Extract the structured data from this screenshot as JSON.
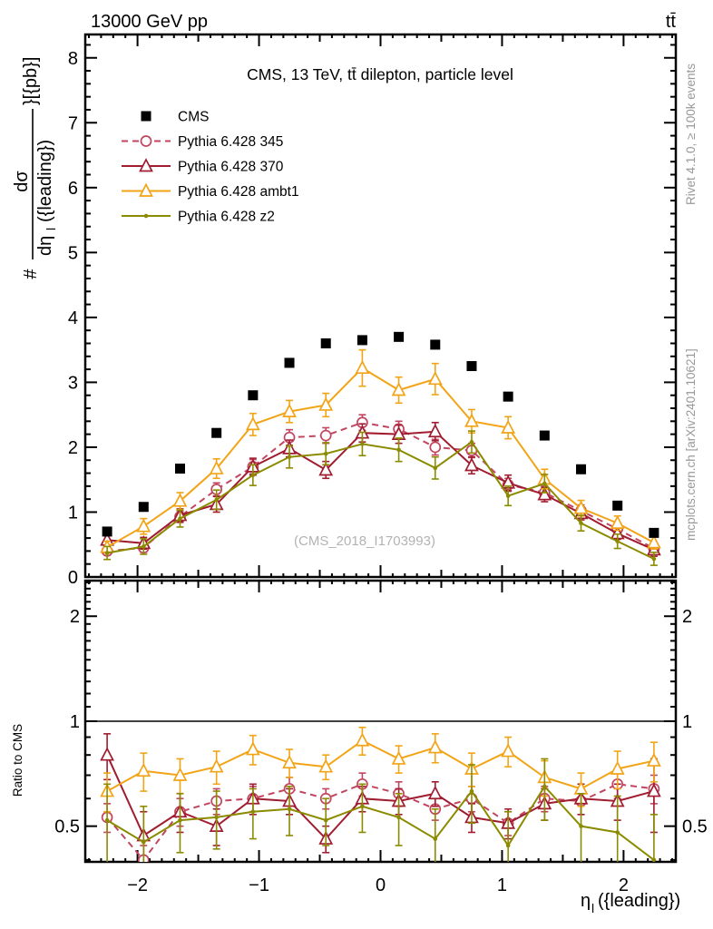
{
  "header": {
    "left": "13000 GeV pp",
    "right": "tt̄"
  },
  "right_margin": {
    "top": "Rivet 4.1.0, ≥ 100k events",
    "bottom": "mcplots.cern.ch [arXiv:2401.10621]"
  },
  "ylabel_pieces": {
    "prefix": "#",
    "num": "dσ",
    "den1": "dη",
    "den_sub": "l",
    "den2": "({leading})",
    "suffix": "}[{pb}]"
  },
  "xlabel_pieces": {
    "main": "η",
    "sub": "l",
    "rest": "({leading})"
  },
  "colors": {
    "cms": "#000000",
    "p345": "#c2455f",
    "p370": "#a01c30",
    "ambt1": "#f2a416",
    "z2": "#8b8b00",
    "frame": "#000000",
    "gray_text": "#999999",
    "watermark": "#b3b3b3"
  },
  "legend": {
    "items": [
      {
        "id": "cms",
        "label": "CMS"
      },
      {
        "id": "p345",
        "label": "Pythia 6.428 345"
      },
      {
        "id": "p370",
        "label": "Pythia 6.428 370"
      },
      {
        "id": "ambt1",
        "label": "Pythia 6.428 ambt1"
      },
      {
        "id": "z2",
        "label": "Pythia 6.428 z2"
      }
    ]
  },
  "chart_data": [
    {
      "type": "scatter",
      "title": "CMS, 13 TeV, tt̄ dilepton, particle level",
      "annotation": "(CMS_2018_I1703993)",
      "xlabel": "eta_l({leading})",
      "ylabel": "# dsigma/deta_l({leading}) [pb]",
      "xlim": [
        -2.43,
        2.43
      ],
      "ylim": [
        0,
        8.36
      ],
      "yticks": [
        0,
        1,
        2,
        3,
        4,
        5,
        6,
        7,
        8
      ],
      "xticks": [
        -2,
        -1,
        0,
        1,
        2
      ],
      "xtick_labels": [
        "−2",
        "−1",
        "0",
        "1",
        "2"
      ],
      "grid": false,
      "legend_position": "top-left",
      "x": [
        -2.25,
        -1.95,
        -1.65,
        -1.35,
        -1.05,
        -0.75,
        -0.45,
        -0.15,
        0.15,
        0.45,
        0.75,
        1.05,
        1.35,
        1.65,
        1.95,
        2.25
      ],
      "series": [
        {
          "id": "cms",
          "name": "CMS",
          "marker": "square",
          "line": "none",
          "values": [
            0.7,
            1.08,
            1.67,
            2.22,
            2.8,
            3.3,
            3.6,
            3.65,
            3.7,
            3.58,
            3.25,
            2.78,
            2.18,
            1.66,
            1.1,
            0.68
          ]
        },
        {
          "id": "p345",
          "name": "Pythia 6.428 345",
          "marker": "circle",
          "line": "dashed",
          "values": [
            0.4,
            0.45,
            0.93,
            1.35,
            1.7,
            2.15,
            2.18,
            2.38,
            2.28,
            2.0,
            1.95,
            1.42,
            1.3,
            1.02,
            0.74,
            0.44
          ],
          "errors": [
            0.06,
            0.07,
            0.09,
            0.1,
            0.11,
            0.12,
            0.12,
            0.12,
            0.12,
            0.12,
            0.11,
            0.1,
            0.1,
            0.09,
            0.08,
            0.06
          ]
        },
        {
          "id": "p370",
          "name": "Pythia 6.428 370",
          "marker": "triangle",
          "line": "solid",
          "values": [
            0.57,
            0.52,
            0.95,
            1.12,
            1.7,
            1.98,
            1.65,
            2.22,
            2.2,
            2.24,
            1.72,
            1.45,
            1.27,
            0.98,
            0.67,
            0.42
          ],
          "errors": [
            0.1,
            0.09,
            0.1,
            0.12,
            0.13,
            0.13,
            0.13,
            0.14,
            0.14,
            0.14,
            0.13,
            0.12,
            0.11,
            0.1,
            0.09,
            0.1
          ]
        },
        {
          "id": "ambt1",
          "name": "Pythia 6.428 ambt1",
          "marker": "triangle",
          "line": "solid",
          "values": [
            0.46,
            0.78,
            1.17,
            1.67,
            2.35,
            2.55,
            2.65,
            3.22,
            2.88,
            3.05,
            2.4,
            2.3,
            1.51,
            1.06,
            0.83,
            0.53
          ],
          "errors": [
            0.09,
            0.12,
            0.13,
            0.15,
            0.17,
            0.17,
            0.18,
            0.28,
            0.2,
            0.24,
            0.18,
            0.17,
            0.15,
            0.12,
            0.11,
            0.1
          ]
        },
        {
          "id": "z2",
          "name": "Pythia 6.428 z2",
          "marker": "dot",
          "line": "solid",
          "values": [
            0.37,
            0.47,
            0.9,
            1.19,
            1.57,
            1.85,
            1.9,
            2.05,
            1.96,
            1.68,
            2.08,
            1.25,
            1.44,
            0.83,
            0.55,
            0.28
          ],
          "errors": [
            0.1,
            0.12,
            0.13,
            0.15,
            0.16,
            0.17,
            0.17,
            0.18,
            0.18,
            0.17,
            0.17,
            0.15,
            0.14,
            0.12,
            0.11,
            0.1
          ]
        }
      ]
    },
    {
      "type": "line",
      "ylabel": "Ratio to CMS",
      "yscale": "log",
      "xlim": [
        -2.43,
        2.43
      ],
      "ylim": [
        0.395,
        2.53
      ],
      "yticks": [
        0.5,
        1,
        2
      ],
      "ytick_labels": [
        "0.5",
        "1",
        "2"
      ],
      "xticks": [
        -2,
        -1,
        0,
        1,
        2
      ],
      "xtick_labels": [
        "−2",
        "−1",
        "0",
        "1",
        "2"
      ],
      "reference_line": 1,
      "x": [
        -2.25,
        -1.95,
        -1.65,
        -1.35,
        -1.05,
        -0.75,
        -0.45,
        -0.15,
        0.15,
        0.45,
        0.75,
        1.05,
        1.35,
        1.65,
        1.95,
        2.25
      ],
      "series": [
        {
          "id": "p345",
          "values": [
            0.53,
            0.4,
            0.55,
            0.59,
            0.6,
            0.64,
            0.6,
            0.66,
            0.62,
            0.56,
            0.6,
            0.51,
            0.6,
            0.59,
            0.66,
            0.64
          ],
          "errors": [
            0.05,
            0.04,
            0.05,
            0.05,
            0.05,
            0.05,
            0.04,
            0.05,
            0.05,
            0.04,
            0.05,
            0.04,
            0.05,
            0.05,
            0.06,
            0.06
          ]
        },
        {
          "id": "p370",
          "values": [
            0.8,
            0.47,
            0.55,
            0.5,
            0.6,
            0.59,
            0.46,
            0.6,
            0.59,
            0.62,
            0.53,
            0.51,
            0.58,
            0.6,
            0.59,
            0.63
          ],
          "errors": [
            0.12,
            0.08,
            0.07,
            0.06,
            0.06,
            0.05,
            0.04,
            0.05,
            0.05,
            0.05,
            0.05,
            0.05,
            0.06,
            0.06,
            0.07,
            0.15
          ]
        },
        {
          "id": "ambt1",
          "values": [
            0.63,
            0.72,
            0.7,
            0.74,
            0.83,
            0.76,
            0.74,
            0.88,
            0.78,
            0.84,
            0.73,
            0.82,
            0.69,
            0.64,
            0.73,
            0.77
          ],
          "errors": [
            0.08,
            0.09,
            0.08,
            0.08,
            0.08,
            0.07,
            0.06,
            0.08,
            0.07,
            0.08,
            0.08,
            0.08,
            0.08,
            0.07,
            0.09,
            0.1
          ]
        },
        {
          "id": "z2",
          "values": [
            0.52,
            0.45,
            0.52,
            0.53,
            0.55,
            0.56,
            0.52,
            0.57,
            0.53,
            0.46,
            0.63,
            0.44,
            0.65,
            0.5,
            0.48,
            0.4
          ],
          "errors": [
            0.14,
            0.12,
            0.1,
            0.1,
            0.09,
            0.09,
            0.08,
            0.09,
            0.09,
            0.1,
            0.12,
            0.11,
            0.13,
            0.12,
            0.13,
            0.14
          ]
        }
      ]
    }
  ]
}
